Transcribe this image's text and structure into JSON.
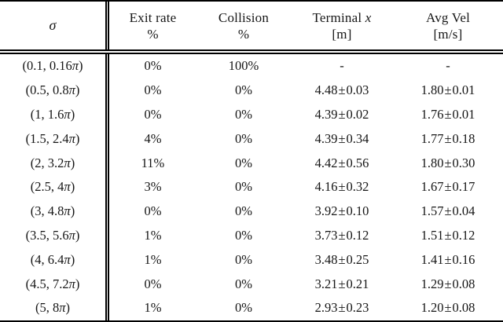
{
  "page": {
    "background_color": "#ffffff",
    "text_color": "#161616",
    "rule_color": "#000000"
  },
  "table": {
    "header": {
      "columns": [
        {
          "id": "sigma",
          "label": "",
          "label_math": "σ",
          "unit": ""
        },
        {
          "id": "exit-rate",
          "label": "Exit rate",
          "label_math": "",
          "unit": "%"
        },
        {
          "id": "collision",
          "label": "Collision",
          "label_math": "",
          "unit": "%"
        },
        {
          "id": "terminal-x",
          "label": "Terminal",
          "label_math": "x",
          "unit": "[m]"
        },
        {
          "id": "avg-vel",
          "label": "Avg Vel",
          "label_math": "",
          "unit": "[m/s]"
        }
      ]
    },
    "rows": [
      [
        "(0.1, 0.16π)",
        "0%",
        "100%",
        "-",
        "-"
      ],
      [
        "(0.5, 0.8π)",
        "0%",
        "0%",
        "4.48 ± 0.03",
        "1.80 ± 0.01"
      ],
      [
        "(1, 1.6π)",
        "0%",
        "0%",
        "4.39 ± 0.02",
        "1.76 ± 0.01"
      ],
      [
        "(1.5, 2.4π)",
        "4%",
        "0%",
        "4.39 ± 0.34",
        "1.77 ± 0.18"
      ],
      [
        "(2, 3.2π)",
        "11%",
        "0%",
        "4.42 ± 0.56",
        "1.80 ± 0.30"
      ],
      [
        "(2.5, 4π)",
        "3%",
        "0%",
        "4.16 ± 0.32",
        "1.67 ± 0.17"
      ],
      [
        "(3, 4.8π)",
        "0%",
        "0%",
        "3.92 ± 0.10",
        "1.57 ± 0.04"
      ],
      [
        "(3.5, 5.6π)",
        "1%",
        "0%",
        "3.73 ± 0.12",
        "1.51 ± 0.12"
      ],
      [
        "(4, 6.4π)",
        "1%",
        "0%",
        "3.48 ± 0.25",
        "1.41 ± 0.16"
      ],
      [
        "(4.5, 7.2π)",
        "0%",
        "0%",
        "3.21 ± 0.21",
        "1.29 ± 0.08"
      ],
      [
        "(5, 8π)",
        "1%",
        "0%",
        "2.93 ± 0.23",
        "1.20 ± 0.08"
      ]
    ]
  }
}
